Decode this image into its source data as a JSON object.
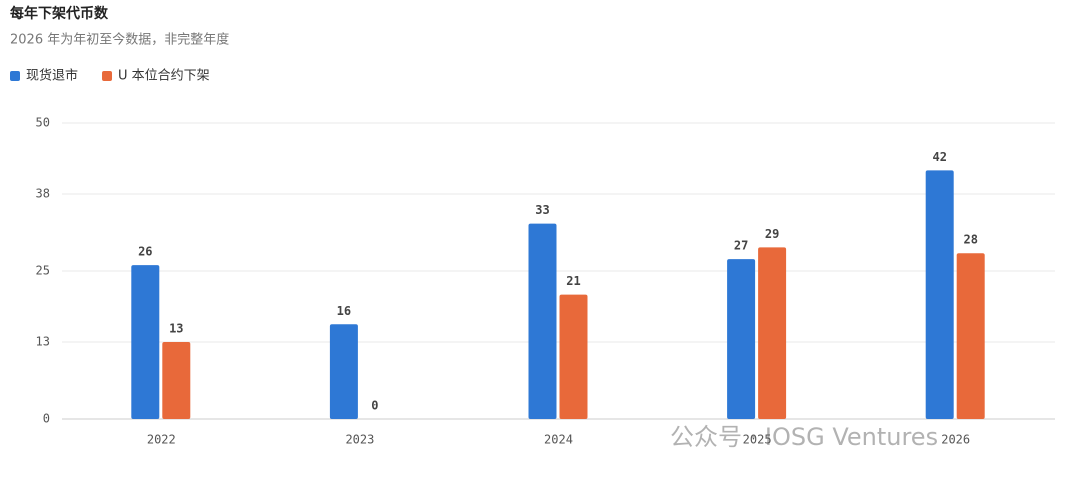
{
  "chart_data": {
    "type": "bar",
    "title": "每年下架代币数",
    "subtitle": "2026 年为年初至今数据，非完整年度",
    "categories": [
      "2022",
      "2023",
      "2024",
      "2025",
      "2026"
    ],
    "series": [
      {
        "name": "现货退市",
        "color": "#2e78d5",
        "values": [
          26,
          16,
          33,
          27,
          42
        ]
      },
      {
        "name": "U 本位合约下架",
        "color": "#e8693a",
        "values": [
          13,
          0,
          21,
          29,
          28
        ]
      }
    ],
    "ylim": [
      0,
      50
    ],
    "yticks": [
      0,
      13,
      25,
      38,
      50
    ],
    "grid": true,
    "legend": "top-left",
    "watermark": "公众号 · IOSG Ventures"
  }
}
